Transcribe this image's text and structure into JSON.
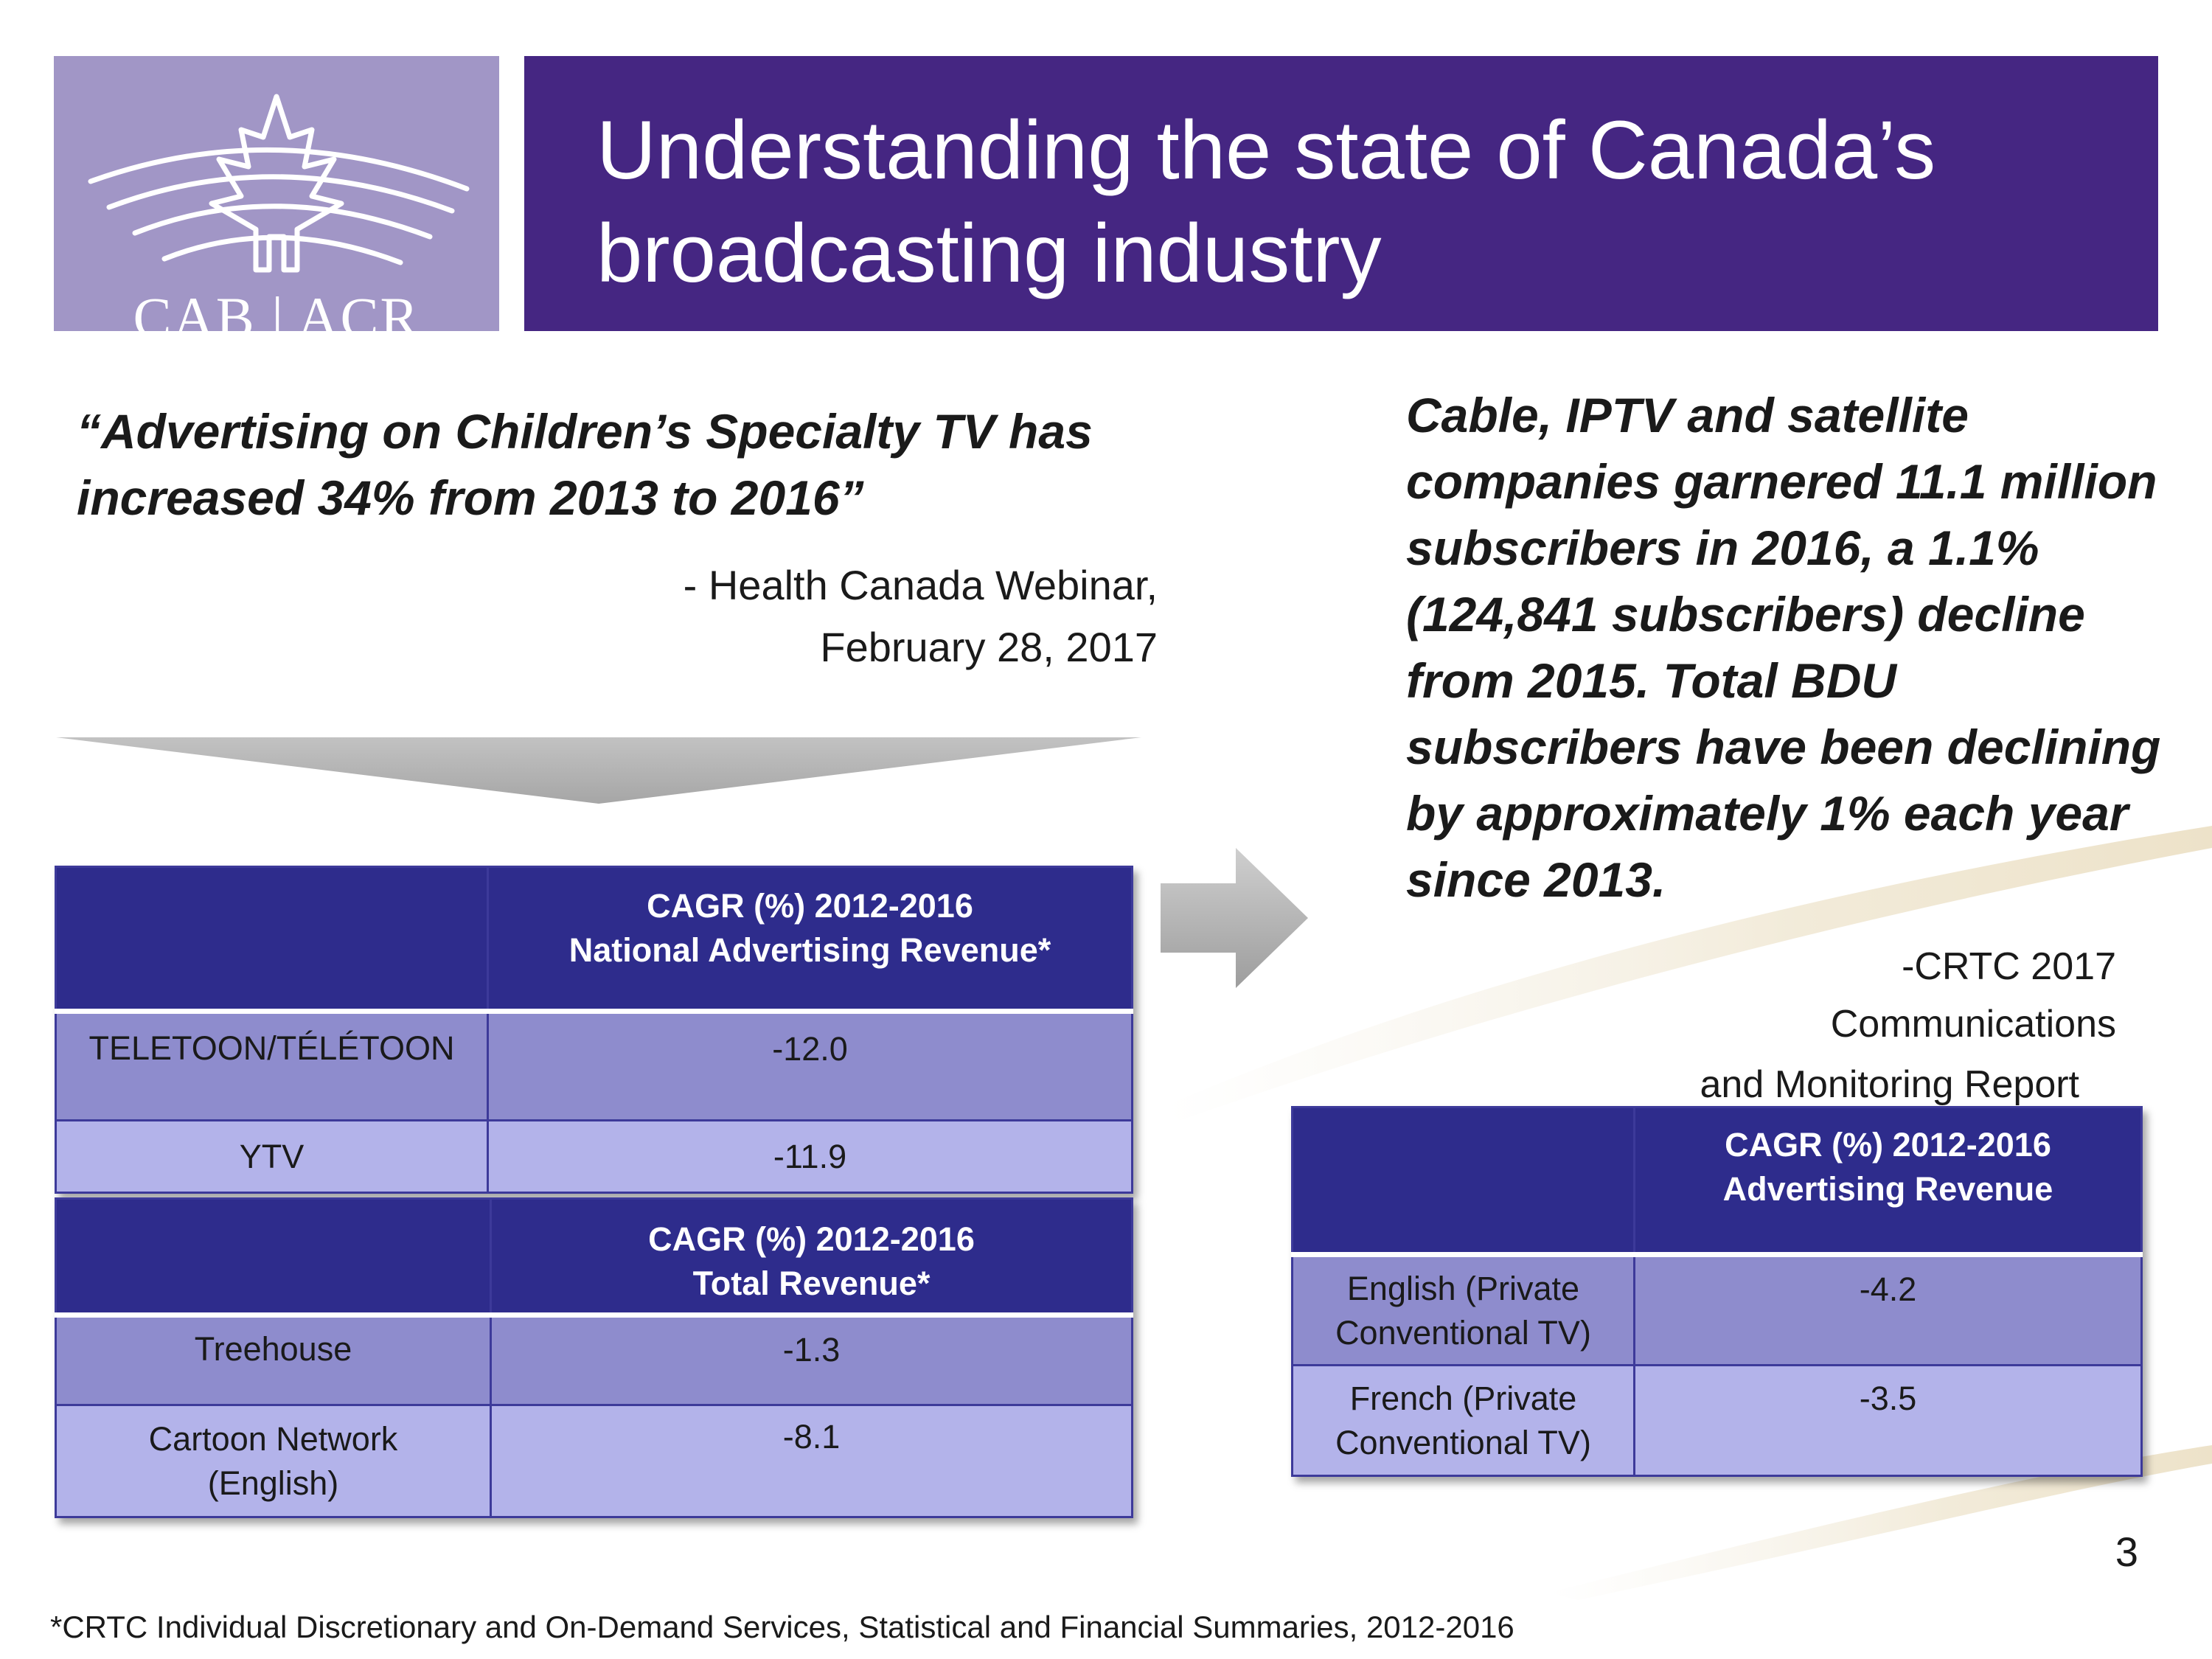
{
  "header": {
    "logo_text": "CAB | ACR",
    "title": "Understanding the state of Canada’s broadcasting industry"
  },
  "left_quote": {
    "text": "“Advertising on Children’s Specialty TV has increased 34% from 2013 to 2016”",
    "attribution_line1": "- Health Canada Webinar,",
    "attribution_line2": "February 28, 2017"
  },
  "right_quote": {
    "text": "Cable, IPTV and satellite companies garnered 11.1 million subscribers in 2016, a 1.1% (124,841 subscribers) decline from 2015. Total BDU subscribers have been declining by approximately 1% each year since 2013.",
    "attribution_line1": "-CRTC 2017",
    "attribution_line2": "Communications",
    "attribution_line3": "and Monitoring Report"
  },
  "table_national": {
    "header_line1": "CAGR (%) 2012-2016",
    "header_line2": "National Advertising Revenue*",
    "rows": [
      {
        "label": "TELETOON/TÉLÉTOON",
        "value": "-12.0"
      },
      {
        "label": "YTV",
        "value": "-11.9"
      }
    ]
  },
  "table_total": {
    "header_line1": "CAGR (%) 2012-2016",
    "header_line2": "Total Revenue*",
    "rows": [
      {
        "label": "Treehouse",
        "value": "-1.3"
      },
      {
        "label_line1": "Cartoon Network",
        "label_line2": "(English)",
        "value": "-8.1"
      }
    ]
  },
  "table_advertising": {
    "header_line1": "CAGR (%) 2012-2016",
    "header_line2": "Advertising Revenue",
    "rows": [
      {
        "label_line1": "English (Private",
        "label_line2": "Conventional TV)",
        "value": "-4.2"
      },
      {
        "label_line1": "French (Private",
        "label_line2": "Conventional TV)",
        "value": "-3.5"
      }
    ]
  },
  "footnote": "*CRTC Individual Discretionary and On-Demand Services, Statistical and Financial Summaries, 2012-2016",
  "page_number": "3",
  "colors": {
    "title_bar": "#452682",
    "logo_box": "#a196c6",
    "table_header": "#2e2c8c",
    "row_dark": "#8e8ccd",
    "row_light": "#b3b3ea"
  }
}
